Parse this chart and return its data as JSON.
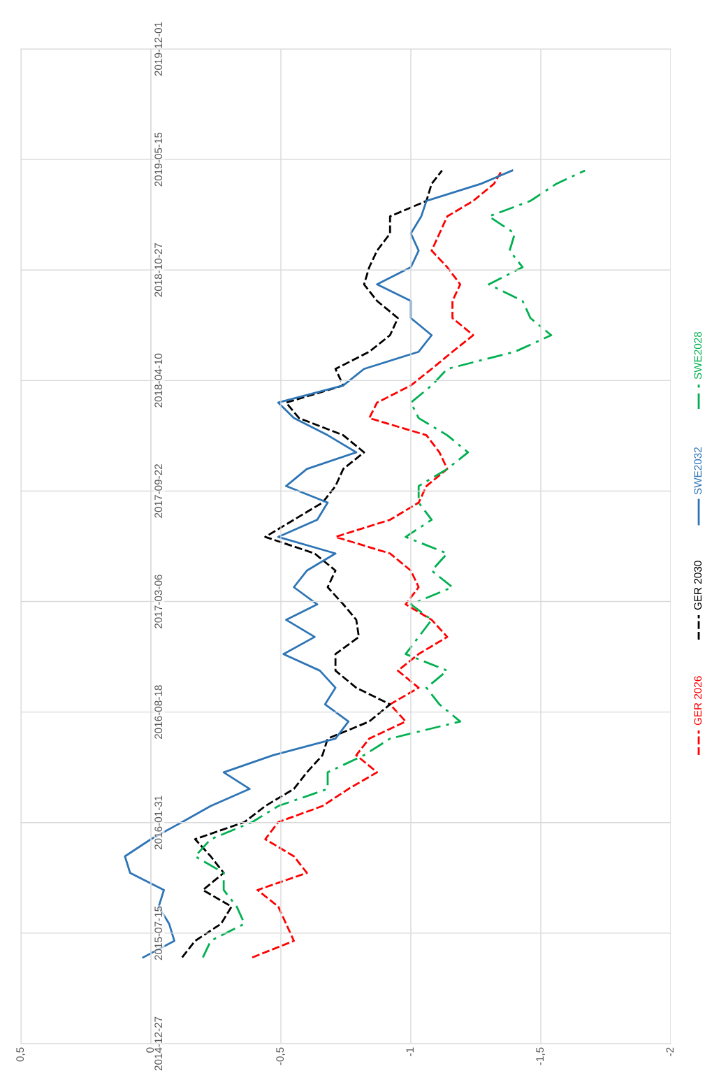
{
  "chart_data": {
    "type": "line",
    "x": [
      "2015-06",
      "2015-07",
      "2015-08",
      "2015-09",
      "2015-10",
      "2015-11",
      "2015-12",
      "2016-01",
      "2016-02",
      "2016-03",
      "2016-04",
      "2016-05",
      "2016-06",
      "2016-07",
      "2016-08",
      "2016-09",
      "2016-10",
      "2016-11",
      "2016-12",
      "2017-01",
      "2017-02",
      "2017-03",
      "2017-04",
      "2017-05",
      "2017-06",
      "2017-07",
      "2017-08",
      "2017-09",
      "2017-10",
      "2017-11",
      "2017-12",
      "2018-01",
      "2018-02",
      "2018-03",
      "2018-04",
      "2018-05",
      "2018-06",
      "2018-07",
      "2018-08",
      "2018-09",
      "2018-10",
      "2018-11",
      "2018-12",
      "2019-01",
      "2019-02",
      "2019-03",
      "2019-04",
      "2019-04-25"
    ],
    "series": [
      {
        "name": "GER 2026",
        "color": "#ff0000",
        "line_style": "dashed",
        "values": [
          -0.39,
          -0.55,
          -0.52,
          -0.49,
          -0.41,
          -0.6,
          -0.55,
          -0.44,
          -0.49,
          -0.66,
          -0.76,
          -0.87,
          -0.79,
          -0.84,
          -0.98,
          -0.92,
          -1.03,
          -0.95,
          -1.03,
          -1.14,
          -1.08,
          -0.98,
          -1.03,
          -1.0,
          -0.92,
          -0.71,
          -0.92,
          -1.03,
          -1.06,
          -1.14,
          -1.11,
          -1.06,
          -0.84,
          -0.87,
          -1.0,
          -1.08,
          -1.16,
          -1.24,
          -1.16,
          -1.16,
          -1.19,
          -1.14,
          -1.08,
          -1.11,
          -1.14,
          -1.24,
          -1.32,
          -1.35
        ]
      },
      {
        "name": "GER 2030",
        "color": "#000000",
        "line_style": "dashed",
        "values": [
          -0.12,
          -0.17,
          -0.27,
          -0.31,
          -0.2,
          -0.28,
          -0.23,
          -0.17,
          -0.36,
          -0.44,
          -0.55,
          -0.6,
          -0.66,
          -0.68,
          -0.84,
          -0.92,
          -0.79,
          -0.71,
          -0.71,
          -0.8,
          -0.79,
          -0.74,
          -0.68,
          -0.71,
          -0.63,
          -0.44,
          -0.55,
          -0.66,
          -0.71,
          -0.74,
          -0.82,
          -0.74,
          -0.57,
          -0.52,
          -0.74,
          -0.71,
          -0.84,
          -0.92,
          -0.95,
          -0.87,
          -0.82,
          -0.84,
          -0.87,
          -0.92,
          -0.92,
          -1.06,
          -1.08,
          -1.12
        ]
      },
      {
        "name": "SWE2032",
        "color": "#2e75b6",
        "line_style": "solid",
        "values": [
          0.03,
          -0.09,
          -0.07,
          -0.03,
          -0.05,
          0.08,
          0.1,
          0.0,
          -0.12,
          -0.23,
          -0.38,
          -0.28,
          -0.47,
          -0.71,
          -0.76,
          -0.67,
          -0.71,
          -0.65,
          -0.51,
          -0.63,
          -0.52,
          -0.64,
          -0.55,
          -0.6,
          -0.71,
          -0.49,
          -0.64,
          -0.68,
          -0.52,
          -0.6,
          -0.79,
          -0.68,
          -0.55,
          -0.49,
          -0.74,
          -0.82,
          -1.03,
          -1.08,
          -1.0,
          -1.0,
          -0.87,
          -1.0,
          -1.03,
          -1.0,
          -1.04,
          -1.06,
          -1.27,
          -1.39
        ]
      },
      {
        "name": "SWE2028",
        "color": "#00b050",
        "line_style": "dashdot",
        "values": [
          -0.2,
          -0.23,
          -0.36,
          -0.33,
          -0.28,
          -0.28,
          -0.17,
          -0.23,
          -0.39,
          -0.49,
          -0.68,
          -0.68,
          -0.82,
          -0.92,
          -1.19,
          -1.11,
          -1.06,
          -1.14,
          -0.98,
          -1.03,
          -1.08,
          -1.0,
          -1.16,
          -1.08,
          -1.14,
          -0.98,
          -1.08,
          -1.03,
          -1.03,
          -1.14,
          -1.22,
          -1.14,
          -1.03,
          -1.0,
          -1.08,
          -1.14,
          -1.4,
          -1.54,
          -1.46,
          -1.43,
          -1.3,
          -1.43,
          -1.38,
          -1.4,
          -1.3,
          -1.46,
          -1.56,
          -1.67
        ]
      }
    ],
    "orientation": "horizontal",
    "ylim": [
      "2014-12-27",
      "2019-12-01"
    ],
    "yticks": [
      "2014-12-27",
      "2015-07-15",
      "2016-01-31",
      "2016-08-18",
      "2017-03-06",
      "2017-09-22",
      "2018-04-10",
      "2018-10-27",
      "2019-05-15",
      "2019-12-01"
    ],
    "xlim": [
      0.5,
      -2
    ],
    "xticks": [
      {
        "value": 0.5,
        "label": "0,5"
      },
      0,
      {
        "value": -0.5,
        "label": "-0,5"
      },
      -1,
      {
        "value": -1.5,
        "label": "-1,5"
      },
      -2
    ],
    "grid": true,
    "legend": "right",
    "marker": "none"
  }
}
